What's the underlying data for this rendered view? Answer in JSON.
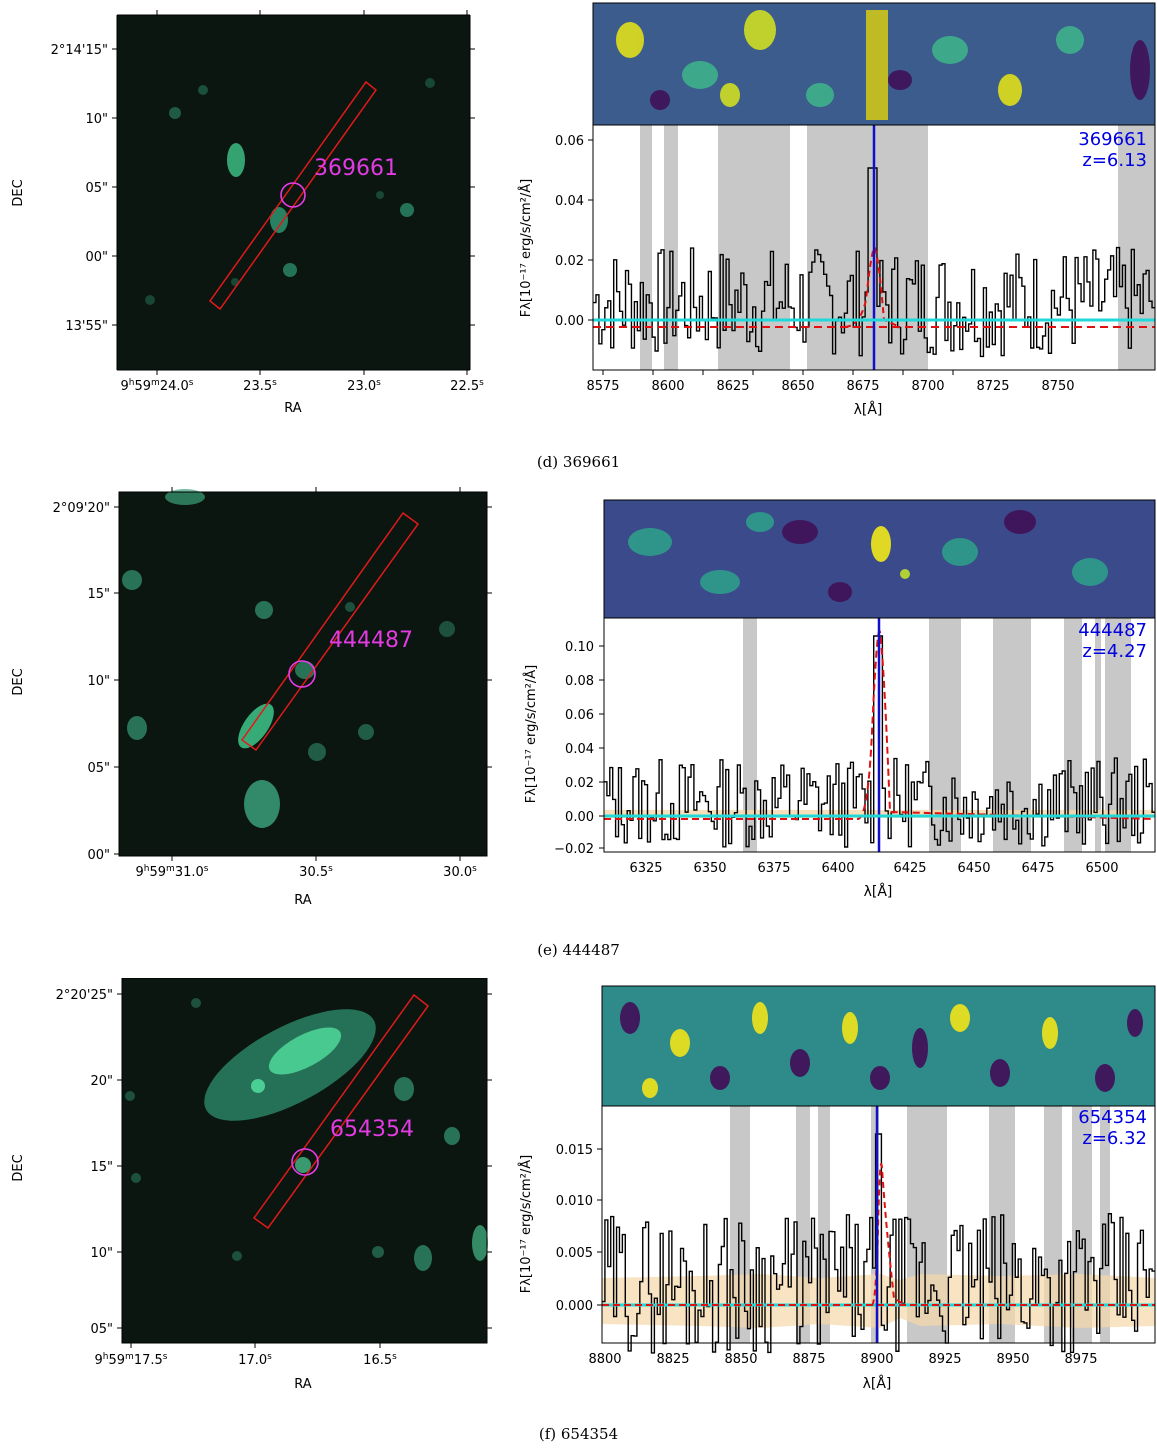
{
  "panels": [
    {
      "id": "369661",
      "caption": "(d) 369661",
      "image": {
        "ylabel": "DEC",
        "xlabel": "RA",
        "dec_ticks": [
          "2°14'15\"",
          "10\"",
          "05\"",
          "00\"",
          "13'55\""
        ],
        "ra_ticks": [
          {
            "h": "9",
            "m": "59",
            "sec": "24.0",
            "s": "s"
          },
          {
            "val": "23.5",
            "s": "s"
          },
          {
            "val": "23.0",
            "s": "s"
          },
          {
            "val": "22.5",
            "s": "s"
          }
        ],
        "source_label": "369661",
        "colors": {
          "slit": "#e21a1a",
          "circle": "#e83ce8",
          "label": "#e23be2",
          "sky": "#0a160f",
          "galaxy": "#3fc58a"
        }
      },
      "spectrum": {
        "label_id": "369661",
        "label_z": "z=6.13",
        "ylabel": "Fλ[10⁻¹⁷ erg/s/cm²/Å]",
        "xlabel": "λ[Å]",
        "xticks": [
          "8575",
          "8600",
          "8625",
          "8650",
          "8675",
          "8700",
          "8725",
          "8750"
        ],
        "yticks": [
          "0.00",
          "0.02",
          "0.04",
          "0.06"
        ]
      }
    },
    {
      "id": "444487",
      "caption": "(e) 444487",
      "image": {
        "ylabel": "DEC",
        "xlabel": "RA",
        "dec_ticks": [
          "2°09'20\"",
          "15\"",
          "10\"",
          "05\"",
          "00\""
        ],
        "ra_ticks": [
          {
            "h": "9",
            "m": "59",
            "sec": "31.0",
            "s": "s"
          },
          {
            "val": "30.5",
            "s": "s"
          },
          {
            "val": "30.0",
            "s": "s"
          }
        ],
        "source_label": "444487",
        "colors": {
          "slit": "#e21a1a",
          "circle": "#e83ce8",
          "label": "#e23be2",
          "sky": "#0a160f",
          "galaxy": "#3fc58a"
        }
      },
      "spectrum": {
        "label_id": "444487",
        "label_z": "z=4.27",
        "ylabel": "Fλ[10⁻¹⁷ erg/s/cm²/Å]",
        "xlabel": "λ[Å]",
        "xticks": [
          "6325",
          "6350",
          "6375",
          "6400",
          "6425",
          "6450",
          "6475",
          "6500"
        ],
        "yticks": [
          "−0.02",
          "0.00",
          "0.02",
          "0.04",
          "0.06",
          "0.08",
          "0.10"
        ]
      }
    },
    {
      "id": "654354",
      "caption": "(f) 654354",
      "image": {
        "ylabel": "DEC",
        "xlabel": "RA",
        "dec_ticks": [
          "2°20'25\"",
          "20\"",
          "15\"",
          "10\"",
          "05\""
        ],
        "ra_ticks": [
          {
            "h": "9",
            "m": "59",
            "sec": "17.5",
            "s": "s"
          },
          {
            "val": "17.0",
            "s": "s"
          },
          {
            "val": "16.5",
            "s": "s"
          }
        ],
        "source_label": "654354",
        "colors": {
          "slit": "#e21a1a",
          "circle": "#e83ce8",
          "label": "#e23be2",
          "sky": "#0a160f",
          "galaxy": "#3fc58a"
        }
      },
      "spectrum": {
        "label_id": "654354",
        "label_z": "z=6.32",
        "ylabel": "Fλ[10⁻¹⁷ erg/s/cm²/Å]",
        "xlabel": "λ[Å]",
        "xticks": [
          "8800",
          "8825",
          "8850",
          "8875",
          "8900",
          "8925",
          "8950",
          "8975"
        ],
        "yticks": [
          "0.000",
          "0.005",
          "0.010",
          "0.015"
        ]
      }
    }
  ],
  "colors": {
    "spectrum_line": "#000000",
    "fit_line": "#e01010",
    "line_marker": "#1010c8",
    "zero_line": "#20d8d8",
    "mask_band": "#c8c8c8",
    "noise_band": "#f5d7a8",
    "label_text": "#0000e0"
  }
}
